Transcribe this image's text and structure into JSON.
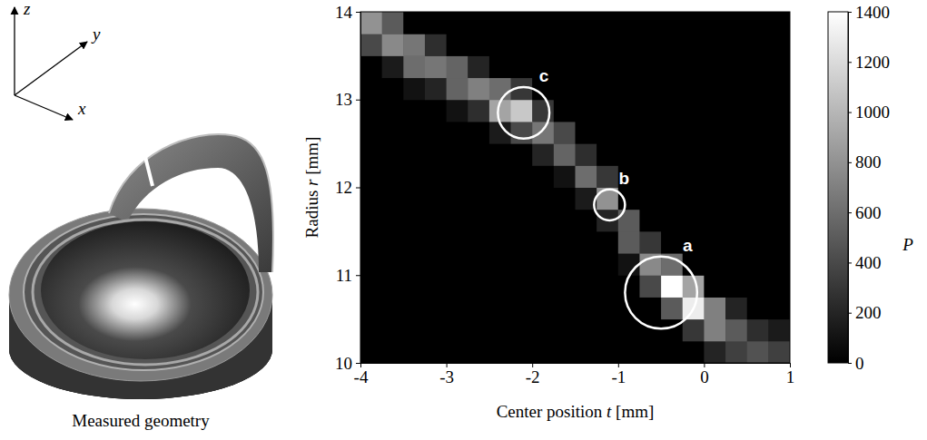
{
  "figure": {
    "caption": "Measured geometry",
    "axis_labels": [
      "x",
      "y",
      "z"
    ]
  },
  "chart_data": {
    "type": "heatmap",
    "xlabel": "Center position t [mm]",
    "ylabel": "Radius r [mm]",
    "xlim": [
      -4,
      1
    ],
    "ylim": [
      10,
      14
    ],
    "xticks": [
      -4,
      -3,
      -2,
      -1,
      0,
      1
    ],
    "yticks": [
      10,
      11,
      12,
      13,
      14
    ],
    "x": [
      -3.875,
      -3.625,
      -3.375,
      -3.125,
      -2.875,
      -2.625,
      -2.375,
      -2.125,
      -1.875,
      -1.625,
      -1.375,
      -1.125,
      -0.875,
      -0.625,
      -0.375,
      -0.125,
      0.125,
      0.375,
      0.625,
      0.875
    ],
    "y": [
      10.125,
      10.375,
      10.625,
      10.875,
      11.125,
      11.375,
      11.625,
      11.875,
      12.125,
      12.375,
      12.625,
      12.875,
      13.125,
      13.375,
      13.625,
      13.875
    ],
    "z": [
      [
        0,
        0,
        0,
        0,
        0,
        0,
        0,
        0,
        0,
        0,
        0,
        0,
        0,
        0,
        0,
        0,
        200,
        350,
        450,
        350
      ],
      [
        0,
        0,
        0,
        0,
        0,
        0,
        0,
        0,
        0,
        0,
        0,
        0,
        0,
        0,
        0,
        300,
        700,
        500,
        250,
        150
      ],
      [
        0,
        0,
        0,
        0,
        0,
        0,
        0,
        0,
        0,
        0,
        0,
        0,
        0,
        0,
        500,
        1300,
        700,
        200,
        0,
        0
      ],
      [
        0,
        0,
        0,
        0,
        0,
        0,
        0,
        0,
        0,
        0,
        0,
        0,
        0,
        400,
        1400,
        900,
        0,
        0,
        0,
        0
      ],
      [
        0,
        0,
        0,
        0,
        0,
        0,
        0,
        0,
        0,
        0,
        0,
        0,
        100,
        750,
        600,
        0,
        0,
        0,
        0,
        0
      ],
      [
        0,
        0,
        0,
        0,
        0,
        0,
        0,
        0,
        0,
        0,
        0,
        0,
        500,
        300,
        0,
        0,
        0,
        0,
        0,
        0
      ],
      [
        0,
        0,
        0,
        0,
        0,
        0,
        0,
        0,
        0,
        0,
        0,
        200,
        500,
        0,
        0,
        0,
        0,
        0,
        0,
        0
      ],
      [
        0,
        0,
        0,
        0,
        0,
        0,
        0,
        0,
        0,
        0,
        150,
        800,
        0,
        0,
        0,
        0,
        0,
        0,
        0,
        0
      ],
      [
        0,
        0,
        0,
        0,
        0,
        0,
        0,
        0,
        0,
        100,
        600,
        300,
        0,
        0,
        0,
        0,
        0,
        0,
        0,
        0
      ],
      [
        0,
        0,
        0,
        0,
        0,
        0,
        0,
        0,
        200,
        550,
        250,
        0,
        0,
        0,
        0,
        0,
        0,
        0,
        0,
        0
      ],
      [
        0,
        0,
        0,
        0,
        0,
        0,
        150,
        400,
        650,
        400,
        0,
        0,
        0,
        0,
        0,
        0,
        0,
        0,
        0,
        0
      ],
      [
        0,
        0,
        0,
        0,
        100,
        250,
        900,
        1100,
        300,
        0,
        0,
        0,
        0,
        0,
        0,
        0,
        0,
        0,
        0,
        0
      ],
      [
        0,
        0,
        100,
        200,
        550,
        700,
        600,
        300,
        0,
        0,
        0,
        0,
        0,
        0,
        0,
        0,
        0,
        0,
        0,
        0
      ],
      [
        0,
        150,
        600,
        650,
        550,
        200,
        0,
        0,
        0,
        0,
        0,
        0,
        0,
        0,
        0,
        0,
        0,
        0,
        0,
        0
      ],
      [
        400,
        750,
        650,
        250,
        0,
        0,
        0,
        0,
        0,
        0,
        0,
        0,
        0,
        0,
        0,
        0,
        0,
        0,
        0,
        0
      ],
      [
        800,
        500,
        0,
        0,
        0,
        0,
        0,
        0,
        0,
        0,
        0,
        0,
        0,
        0,
        0,
        0,
        0,
        0,
        0,
        0
      ]
    ],
    "colorbar": {
      "label": "P",
      "range": [
        0,
        1400
      ],
      "ticks": [
        0,
        200,
        400,
        600,
        800,
        1000,
        1200,
        1400
      ]
    },
    "annotations": [
      {
        "label": "a",
        "t": -0.5,
        "r": 10.8,
        "radius": 0.42
      },
      {
        "label": "b",
        "t": -1.1,
        "r": 11.8,
        "radius": 0.18
      },
      {
        "label": "c",
        "t": -2.1,
        "r": 12.85,
        "radius": 0.3
      }
    ]
  }
}
